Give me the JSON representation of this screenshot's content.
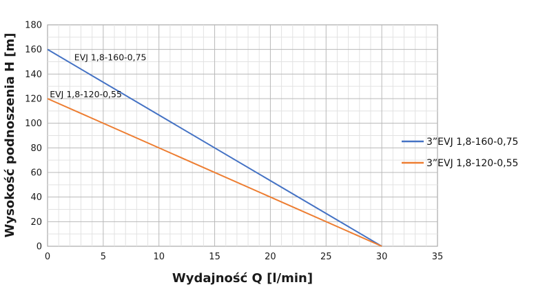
{
  "chart_data": {
    "type": "line",
    "xlabel": "Wydajność Q [l/min]",
    "ylabel": "Wysokość podnoszenia H [m]",
    "xlim": [
      0,
      35
    ],
    "ylim": [
      0,
      180
    ],
    "x_ticks": [
      0,
      5,
      10,
      15,
      20,
      25,
      30,
      35
    ],
    "y_ticks": [
      0,
      20,
      40,
      60,
      80,
      100,
      120,
      140,
      160,
      180
    ],
    "x_minor_step": 1,
    "y_minor_step": 10,
    "grid": true,
    "legend_position": "right",
    "series": [
      {
        "name": "3”EVJ 1,8-160-0,75",
        "color": "#4472c4",
        "points": [
          [
            0,
            160
          ],
          [
            30,
            0
          ]
        ]
      },
      {
        "name": "3”EVJ 1,8-120-0,55",
        "color": "#ed7d31",
        "points": [
          [
            0,
            120
          ],
          [
            30,
            0
          ]
        ]
      }
    ],
    "annotations": [
      {
        "text": "EVJ 1,8-160-0,75",
        "x": 2.4,
        "y": 151
      },
      {
        "text": "EVJ 1,8-120-0,55",
        "x": 0.2,
        "y": 121
      }
    ]
  }
}
